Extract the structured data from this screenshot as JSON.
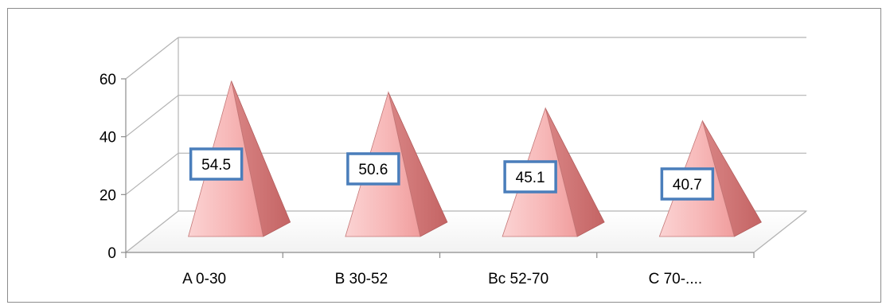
{
  "chart_data": {
    "type": "bar",
    "style": "3d-pyramid",
    "categories": [
      "A 0-30",
      "B 30-52",
      "Bc 52-70",
      "C 70-...."
    ],
    "series": [
      {
        "values": [
          54.5,
          50.6,
          45.1,
          40.7
        ],
        "data_labels": [
          "54.5",
          "50.6",
          "45.1",
          "40.7"
        ],
        "color": "#f4a9a9"
      }
    ],
    "y_ticks": [
      "0",
      "20",
      "40",
      "60"
    ],
    "ylim": [
      0,
      60
    ],
    "grid": true,
    "legend": "none",
    "label_box_border_color": "#4a7ebb"
  }
}
